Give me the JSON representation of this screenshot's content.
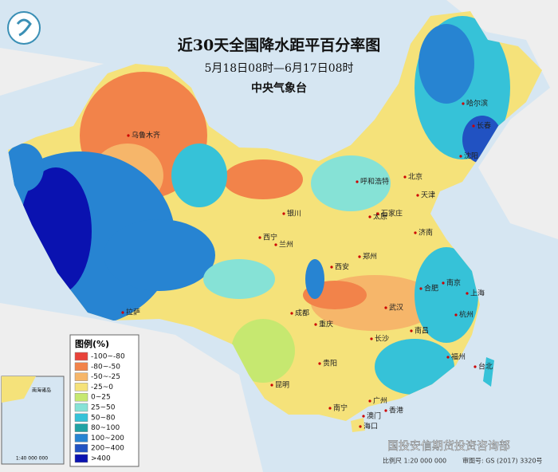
{
  "header": {
    "title": "近30天全国降水距平百分率图",
    "subtitle": "5月18日08时—6月17日08时",
    "issuer": "中央气象台"
  },
  "legend": {
    "title": "图例(%)",
    "items": [
      {
        "label": "-100~-80",
        "color": "#e8433a"
      },
      {
        "label": "-80~-50",
        "color": "#f2834a"
      },
      {
        "label": "-50~-25",
        "color": "#f6b66a"
      },
      {
        "label": "-25~0",
        "color": "#f5e27a"
      },
      {
        "label": "0~25",
        "color": "#c6e870"
      },
      {
        "label": "25~50",
        "color": "#86e2d6"
      },
      {
        "label": "50~80",
        "color": "#36c2d8"
      },
      {
        "label": "80~100",
        "color": "#21a2a4"
      },
      {
        "label": "100~200",
        "color": "#2784d2"
      },
      {
        "label": "200~400",
        "color": "#2152c2"
      },
      {
        "label": ">400",
        "color": "#0a12b0"
      }
    ]
  },
  "cities": [
    "乌鲁木齐",
    "哈尔滨",
    "长春",
    "沈阳",
    "北京",
    "天津",
    "呼和浩特",
    "银川",
    "太原",
    "石家庄",
    "济南",
    "西宁",
    "兰州",
    "西安",
    "郑州",
    "合肥",
    "南京",
    "上海",
    "杭州",
    "武汉",
    "拉萨",
    "成都",
    "重庆",
    "长沙",
    "南昌",
    "福州",
    "台北",
    "贵阳",
    "昆明",
    "南宁",
    "广州",
    "澳门",
    "香港",
    "海口"
  ],
  "inset": {
    "label": "南海诸岛",
    "scale": "1:40 000 000"
  },
  "footer": {
    "scale": "比例尺 1:20 000 000",
    "review": "审图号: GS (2017) 3320号",
    "watermark": "国投安信期货投资咨询部"
  }
}
